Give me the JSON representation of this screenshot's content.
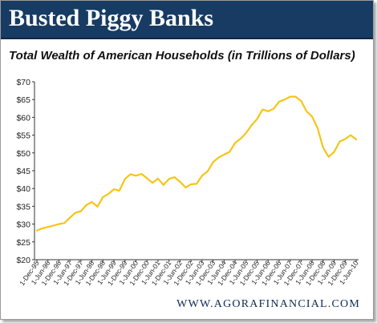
{
  "banner": {
    "title": "Busted Piggy Banks"
  },
  "footer": {
    "url": "WWW.AGORAFINANCIAL.COM"
  },
  "chart_data": {
    "type": "line",
    "title": "Total Wealth of American Households (in Trillions of Dollars)",
    "xlabel": "",
    "ylabel": "",
    "ylim": [
      20,
      70
    ],
    "yticks": [
      "$20",
      "$25",
      "$30",
      "$35",
      "$40",
      "$45",
      "$50",
      "$55",
      "$60",
      "$65",
      "$70"
    ],
    "ytick_values": [
      20,
      25,
      30,
      35,
      40,
      45,
      50,
      55,
      60,
      65,
      70
    ],
    "xticks": [
      "1-Dec-95",
      "1-Jun-96",
      "1-Dec-96",
      "1-Jun-97",
      "1-Dec-97",
      "1-Jun-98",
      "1-Dec-98",
      "1-Jun-99",
      "1-Dec-99",
      "1-Jun-00",
      "1-Dec-00",
      "1-Jun-01",
      "1-Dec-01",
      "1-Jun-02",
      "1-Dec-02",
      "1-Jun-03",
      "1-Dec-03",
      "1-Jun-04",
      "1-Dec-04",
      "1-Jun-05",
      "1-Dec-05",
      "1-Jun-06",
      "1-Dec-06",
      "1-Jun-07",
      "1-Dec-07",
      "1-Jun-08",
      "1-Dec-08",
      "1-Jun-09",
      "1-Dec-09",
      "1-Jun-10"
    ],
    "grid": false,
    "legend": "none",
    "series": [
      {
        "color": "#f5c518",
        "values": [
          28.2,
          28.8,
          29.2,
          29.6,
          30.0,
          30.3,
          31.8,
          33.2,
          33.6,
          35.4,
          36.2,
          34.9,
          37.6,
          38.5,
          39.8,
          39.4,
          42.7,
          44.0,
          43.6,
          44.1,
          42.9,
          41.6,
          42.8,
          41.0,
          42.7,
          43.2,
          41.9,
          40.3,
          41.2,
          41.3,
          43.6,
          44.8,
          47.4,
          48.7,
          49.5,
          50.3,
          52.8,
          54.0,
          55.6,
          57.8,
          59.5,
          62.2,
          61.7,
          62.4,
          64.4,
          65.0,
          65.8,
          65.8,
          64.6,
          61.7,
          60.2,
          56.9,
          51.5,
          48.9,
          50.3,
          53.2,
          53.9,
          55.0,
          53.8
        ]
      }
    ]
  }
}
